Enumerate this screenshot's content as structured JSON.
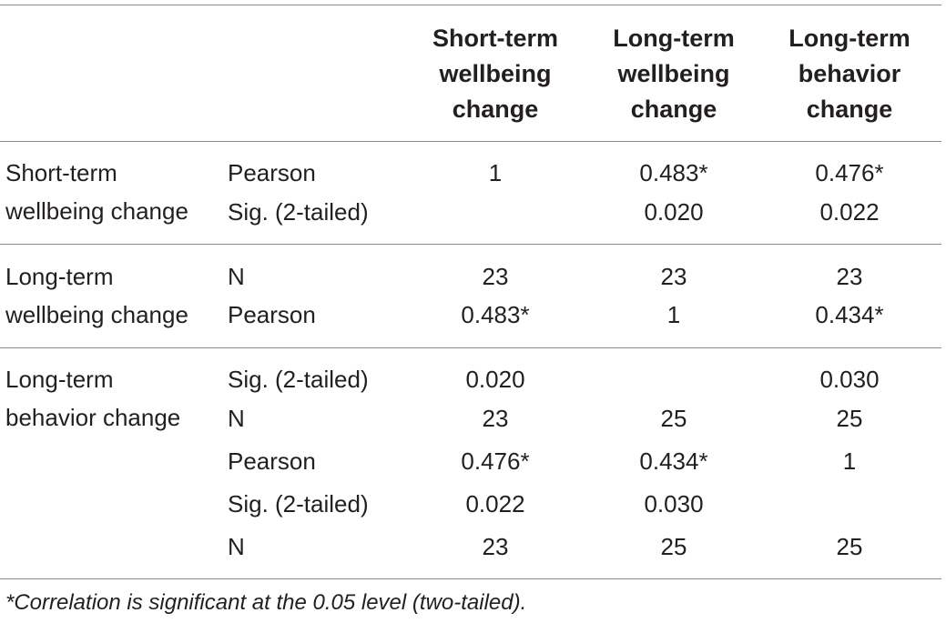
{
  "table": {
    "headers": [
      [
        "Short-term",
        "wellbeing",
        "change"
      ],
      [
        "Long-term",
        "wellbeing",
        "change"
      ],
      [
        "Long-term",
        "behavior",
        "change"
      ]
    ],
    "row_labels": [
      [
        "Short-term",
        "wellbeing change"
      ],
      [
        "Long-term",
        "wellbeing change"
      ],
      [
        "Long-term",
        "behavior change"
      ]
    ],
    "rows": [
      {
        "stat": "Pearson",
        "values": [
          "1",
          "0.483*",
          "0.476*"
        ]
      },
      {
        "stat": "Sig. (2-tailed)",
        "values": [
          "",
          "0.020",
          "0.022"
        ]
      },
      {
        "stat": "N",
        "values": [
          "23",
          "23",
          "23"
        ]
      },
      {
        "stat": "Pearson",
        "values": [
          "0.483*",
          "1",
          "0.434*"
        ]
      },
      {
        "stat": "Sig. (2-tailed)",
        "values": [
          "0.020",
          "",
          "0.030"
        ]
      },
      {
        "stat": "N",
        "values": [
          "23",
          "25",
          "25"
        ]
      },
      {
        "stat": "Pearson",
        "values": [
          "0.476*",
          "0.434*",
          "1"
        ]
      },
      {
        "stat": "Sig. (2-tailed)",
        "values": [
          "0.022",
          "0.030",
          ""
        ]
      },
      {
        "stat": "N",
        "values": [
          "23",
          "25",
          "25"
        ]
      }
    ],
    "footnote": "*Correlation is significant at the 0.05 level (two-tailed)."
  }
}
